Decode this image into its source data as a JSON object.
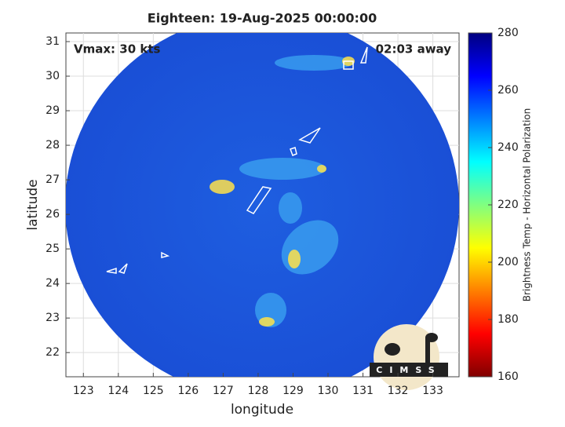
{
  "chart_data": {
    "type": "image",
    "title": "Eighteen: 19-Aug-2025 00:00:00",
    "xlabel": "longitude",
    "ylabel": "latitude",
    "xlim": [
      122.5,
      133.75
    ],
    "xticks": [
      123,
      124,
      125,
      126,
      127,
      128,
      129,
      130,
      131,
      132,
      133
    ],
    "ylim": [
      21.3,
      31.25
    ],
    "yticks": [
      22,
      23,
      24,
      25,
      26,
      27,
      28,
      29,
      30,
      31
    ],
    "grid": true,
    "annotations": [
      "Vmax: 30 kts",
      "02:03 away"
    ],
    "colorbar": {
      "label": "Brightness Temp - Horizontal Polarization",
      "lim": [
        160,
        280
      ],
      "ticks": [
        160,
        180,
        200,
        220,
        240,
        260,
        280
      ]
    },
    "logo_text": "CIMSS"
  }
}
